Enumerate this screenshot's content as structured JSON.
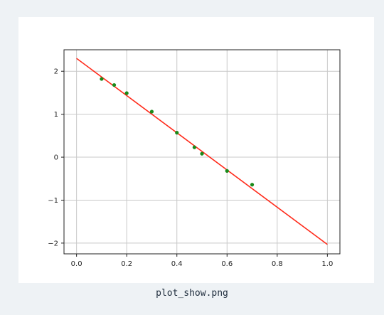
{
  "caption": "plot_show.png",
  "chart_data": {
    "type": "scatter",
    "title": "",
    "xlabel": "",
    "ylabel": "",
    "xlim": [
      -0.05,
      1.05
    ],
    "ylim": [
      -2.25,
      2.5
    ],
    "grid": true,
    "x_ticks": [
      0.0,
      0.2,
      0.4,
      0.6,
      0.8,
      1.0
    ],
    "x_tick_labels": [
      "0.0",
      "0.2",
      "0.4",
      "0.6",
      "0.8",
      "1.0"
    ],
    "y_ticks": [
      2,
      1,
      0,
      -1,
      -2
    ],
    "y_tick_labels": [
      "2",
      "1",
      "0",
      "−1",
      "−2"
    ],
    "series": [
      {
        "kind": "points",
        "color": "#1a8a1a",
        "x": [
          0.1,
          0.15,
          0.2,
          0.3,
          0.4,
          0.47,
          0.5,
          0.6,
          0.7
        ],
        "y": [
          1.82,
          1.68,
          1.49,
          1.06,
          0.57,
          0.23,
          0.08,
          -0.32,
          -0.64
        ]
      },
      {
        "kind": "line",
        "color": "#ff2a1a",
        "x": [
          0.0,
          1.0
        ],
        "y": [
          2.3,
          -2.03
        ]
      }
    ]
  }
}
